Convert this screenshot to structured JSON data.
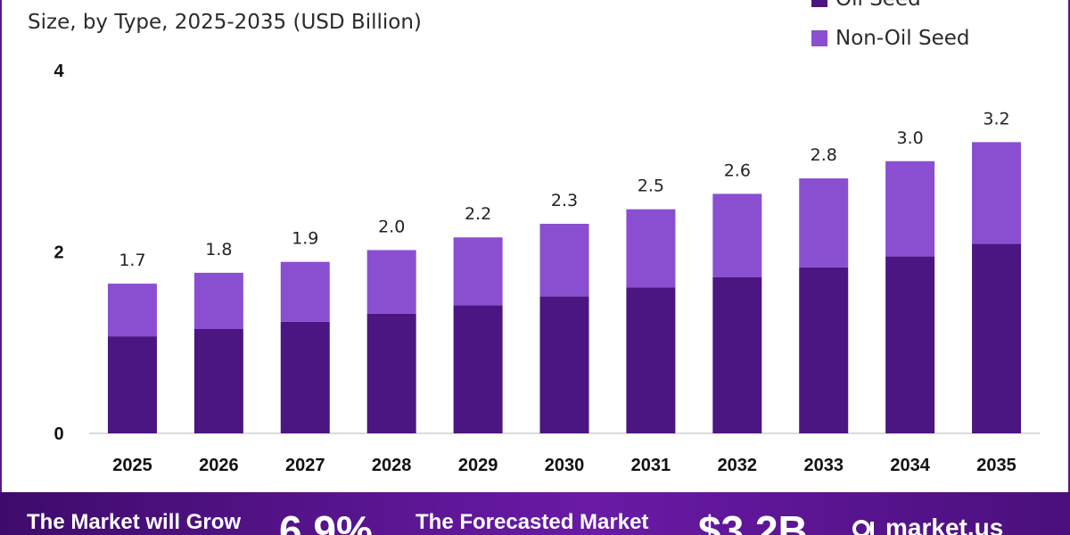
{
  "header": {
    "subtitle": "Size, by Type, 2025-2035 (USD Billion)"
  },
  "legend": [
    {
      "label": "Oil Seed",
      "color": "#4b1681"
    },
    {
      "label": "Non-Oil Seed",
      "color": "#8a4fd1"
    }
  ],
  "chart_data": {
    "type": "bar",
    "stacked": true,
    "categories": [
      "2025",
      "2026",
      "2027",
      "2028",
      "2029",
      "2030",
      "2031",
      "2032",
      "2033",
      "2034",
      "2035"
    ],
    "series": [
      {
        "name": "Oil Seed",
        "values": [
          1.07,
          1.15,
          1.23,
          1.32,
          1.41,
          1.51,
          1.61,
          1.72,
          1.83,
          1.95,
          2.09
        ]
      },
      {
        "name": "Non-Oil Seed",
        "values": [
          0.58,
          0.62,
          0.66,
          0.7,
          0.75,
          0.8,
          0.86,
          0.92,
          0.98,
          1.05,
          1.12
        ]
      }
    ],
    "totals_labels": [
      "1.7",
      "1.8",
      "1.9",
      "2.0",
      "2.2",
      "2.3",
      "2.5",
      "2.6",
      "2.8",
      "3.0",
      "3.2"
    ],
    "y_ticks": [
      "0",
      "2",
      "4"
    ],
    "ylim": [
      0,
      4
    ],
    "grid": false
  },
  "footer": {
    "grow_text": "The Market will Grow",
    "cagr": "6.9%",
    "forecast_text": "The Forecasted Market",
    "value": "$3.2B",
    "brand": "market.us"
  }
}
